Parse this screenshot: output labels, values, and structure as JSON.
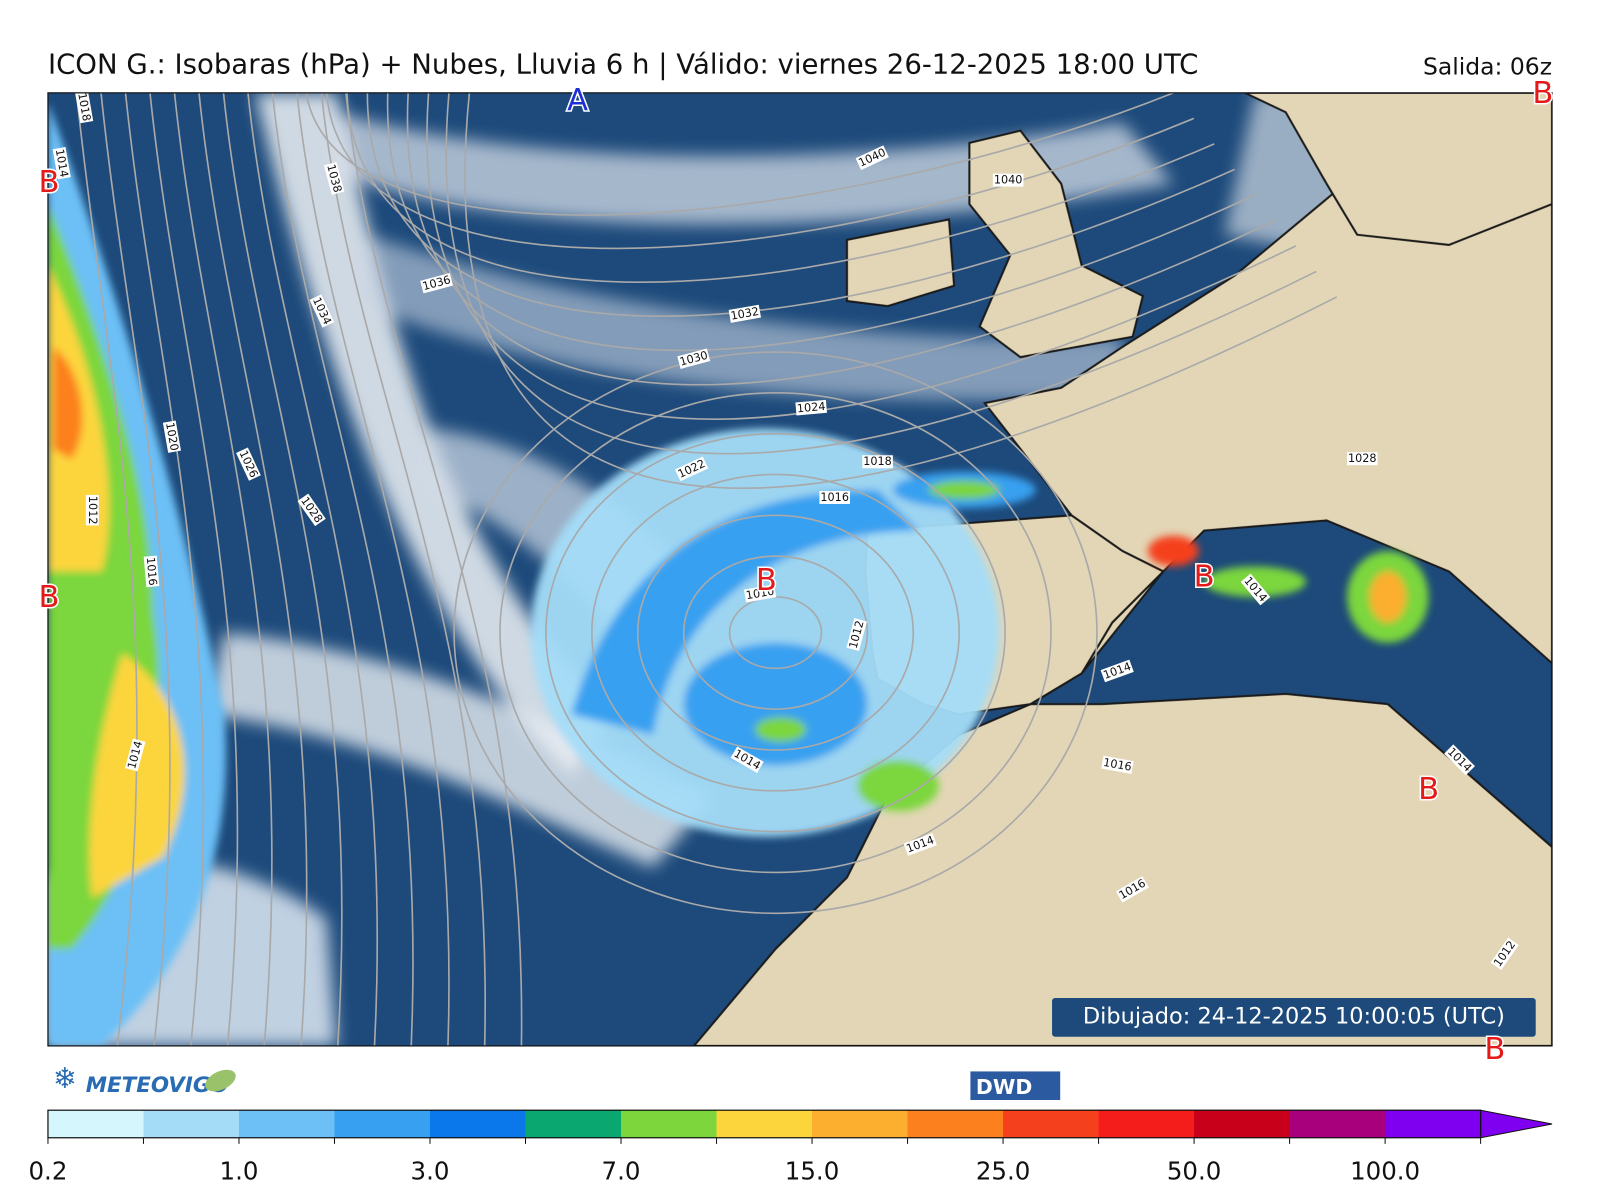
{
  "header": {
    "title": "ICON G.: Isobaras (hPa) + Nubes, Lluvia 6 h | Válido: viernes 26-12-2025 18:00 UTC",
    "run": "Salida: 06z"
  },
  "map": {
    "pressure_centers": [
      {
        "label": "A",
        "color": "#1f2fd6"
      },
      {
        "label": "B",
        "color": "#e41a1a"
      },
      {
        "label": "B",
        "color": "#e41a1a"
      },
      {
        "label": "B",
        "color": "#e41a1a"
      },
      {
        "label": "B",
        "color": "#e41a1a"
      },
      {
        "label": "B",
        "color": "#e41a1a"
      },
      {
        "label": "B",
        "color": "#e41a1a"
      },
      {
        "label": "B",
        "color": "#e41a1a"
      }
    ],
    "isobar_labels": [
      "1018",
      "1014",
      "1040",
      "1040",
      "1038",
      "1036",
      "1034",
      "1032",
      "1030",
      "1024",
      "1022",
      "1020",
      "1018",
      "1016",
      "1026",
      "1028",
      "1012",
      "1016",
      "1010",
      "1012",
      "1014",
      "1014",
      "1014",
      "1014",
      "1016",
      "1014",
      "1016",
      "1028",
      "1014",
      "1012"
    ],
    "drawn": "Dibujado: 24-12-2025 10:00:05 (UTC)"
  },
  "footer": {
    "logo_left": "METEOVIGO",
    "logo_right": "DWD"
  },
  "colorbar": {
    "colors": [
      "#d6f6fe",
      "#a4dcf8",
      "#6cc0f6",
      "#38a0f0",
      "#0a78ea",
      "#0aa870",
      "#7cd63c",
      "#fcd53c",
      "#fcae2e",
      "#fc801e",
      "#f5401e",
      "#f51c1c",
      "#c8001a",
      "#a8007c",
      "#7f00f0"
    ],
    "ticks": [
      "0.2",
      "1.0",
      "3.0",
      "7.0",
      "15.0",
      "25.0",
      "50.0",
      "100.0"
    ]
  }
}
